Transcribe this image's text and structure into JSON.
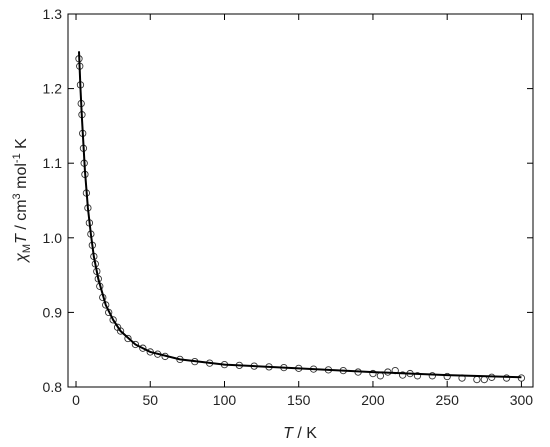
{
  "chart_data": {
    "type": "scatter",
    "x_label": {
      "italic": "T",
      "rest": " / K"
    },
    "y_label": {
      "chi": "χ",
      "sub": "M",
      "t": "T",
      "unit": " / cm",
      "sup1": "3",
      "mol": " mol",
      "sup2": "-1",
      "end": " K"
    },
    "xlim": [
      -5.4,
      307.8
    ],
    "ylim": [
      0.8,
      1.3
    ],
    "xticks": [
      0,
      50,
      100,
      150,
      200,
      250,
      300
    ],
    "yticks": [
      0.8,
      0.9,
      {
        "value": 1,
        "label": "1.0"
      },
      1.1,
      1.2,
      1.3
    ],
    "series": [
      {
        "kind": "markers",
        "color": "#333333",
        "x": [
          2,
          2.5,
          3,
          3.5,
          4,
          4.5,
          5,
          5.5,
          6,
          7,
          8,
          9,
          10,
          11,
          12,
          13,
          14,
          15,
          16,
          18,
          20,
          22,
          25,
          28,
          30,
          35,
          40,
          45,
          50,
          55,
          60,
          70,
          80,
          90,
          100,
          110,
          120,
          130,
          140,
          150,
          160,
          170,
          180,
          190,
          200,
          205,
          210,
          215,
          220,
          225,
          230,
          240,
          250,
          260,
          270,
          275,
          280,
          290,
          300
        ],
        "values": [
          1.24,
          1.23,
          1.205,
          1.18,
          1.165,
          1.14,
          1.12,
          1.1,
          1.085,
          1.06,
          1.04,
          1.02,
          1.005,
          0.99,
          0.975,
          0.965,
          0.955,
          0.945,
          0.935,
          0.92,
          0.91,
          0.9,
          0.89,
          0.88,
          0.875,
          0.865,
          0.857,
          0.852,
          0.847,
          0.844,
          0.841,
          0.837,
          0.834,
          0.832,
          0.83,
          0.829,
          0.828,
          0.827,
          0.826,
          0.825,
          0.824,
          0.823,
          0.822,
          0.82,
          0.818,
          0.815,
          0.82,
          0.822,
          0.816,
          0.818,
          0.815,
          0.815,
          0.814,
          0.812,
          0.81,
          0.81,
          0.813,
          0.812,
          0.812
        ]
      },
      {
        "kind": "line",
        "color": "#000000",
        "x": [
          2,
          3,
          4,
          5,
          6,
          8,
          10,
          12,
          15,
          20,
          25,
          30,
          40,
          50,
          70,
          100,
          150,
          200,
          250,
          300
        ],
        "values": [
          1.25,
          1.2,
          1.16,
          1.125,
          1.09,
          1.04,
          1.005,
          0.975,
          0.945,
          0.91,
          0.89,
          0.875,
          0.857,
          0.847,
          0.837,
          0.83,
          0.825,
          0.82,
          0.816,
          0.813
        ]
      }
    ]
  }
}
